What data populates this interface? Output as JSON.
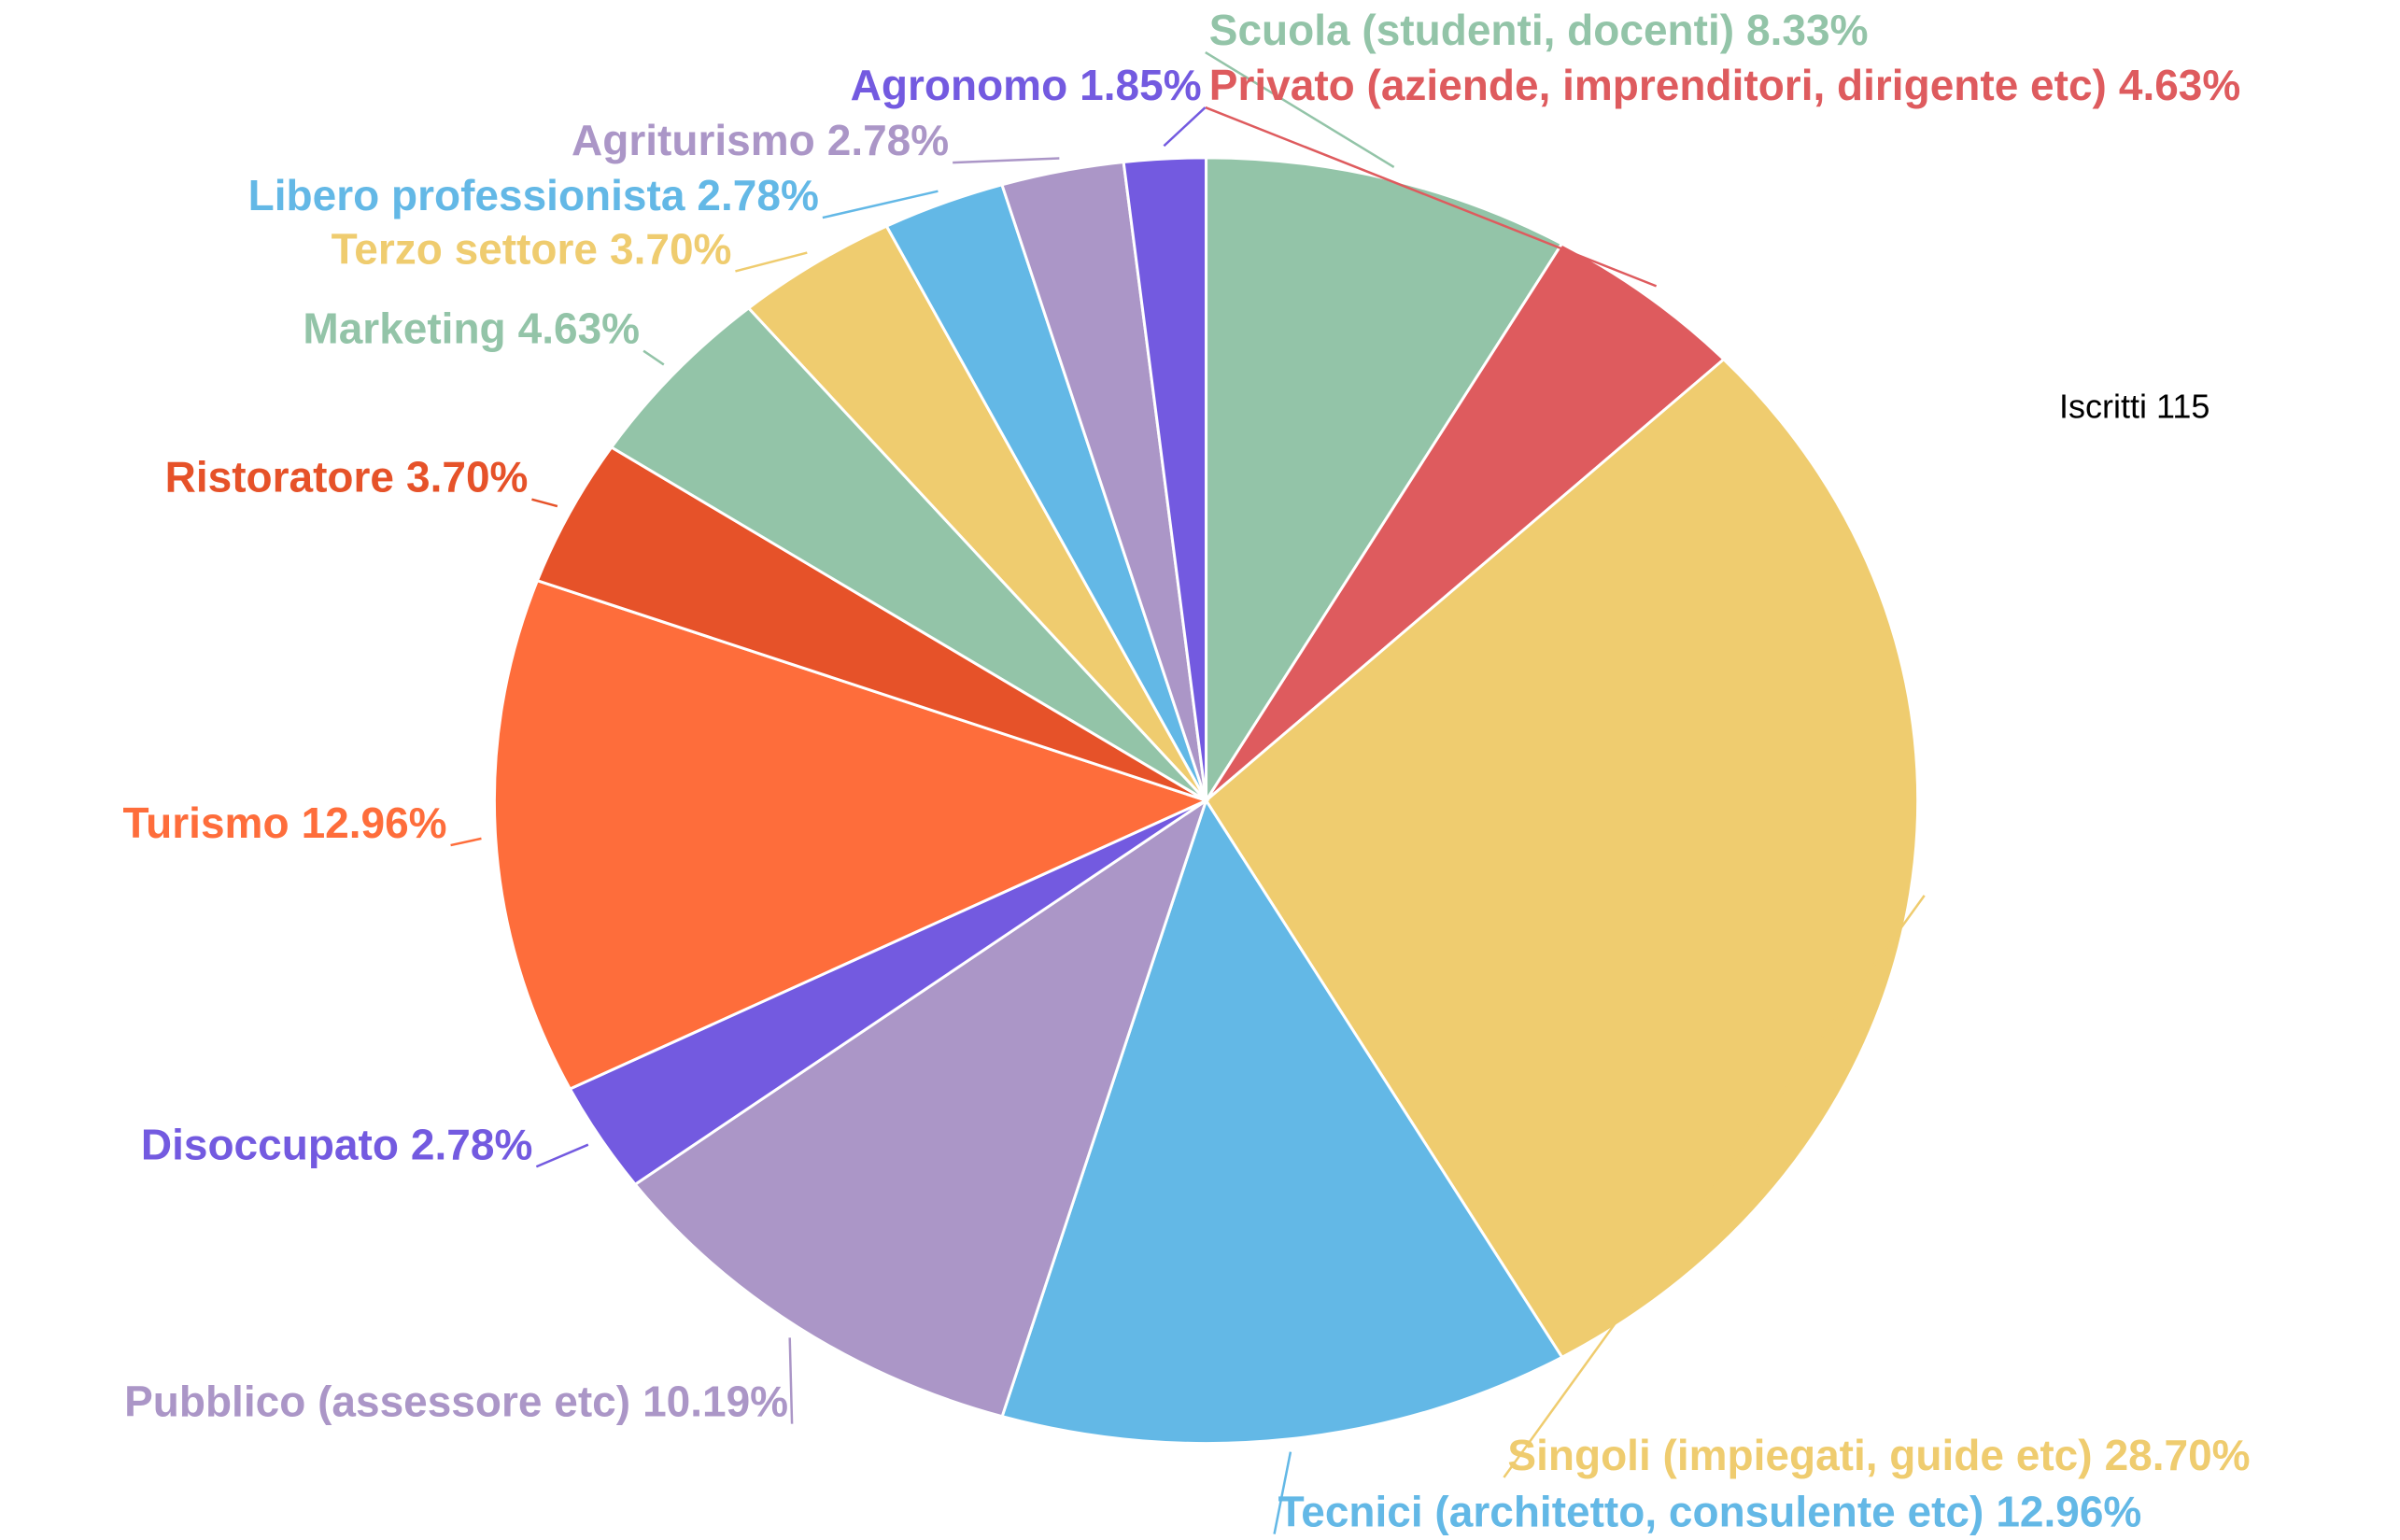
{
  "chart_data": {
    "type": "pie",
    "categories": [
      "Scuola (studenti, docenti)",
      "Privato (aziende, imprenditori, dirigente etc)",
      "Singoli (impiegati, guide etc)",
      "Tecnici (architetto, consulente etc)",
      "Pubblico (assessore etc)",
      "Disoccupato",
      "Turismo",
      "Ristoratore",
      "Marketing",
      "Terzo settore",
      "Libero professionista",
      "Agriturismo",
      "Agronomo"
    ],
    "values": [
      8.33,
      4.63,
      28.7,
      12.96,
      10.19,
      2.78,
      12.96,
      3.7,
      4.63,
      3.7,
      2.78,
      2.78,
      1.85
    ],
    "value_labels": [
      "8.33%",
      "4.63%",
      "28.70%",
      "12.96%",
      "10.19%",
      "2.78%",
      "12.96%",
      "3.70%",
      "4.63%",
      "3.70%",
      "2.78%",
      "2.78%",
      "1.85%"
    ],
    "colors": [
      "#93c4a8",
      "#de5b5e",
      "#efcc6f",
      "#63b8e6",
      "#ab96c7",
      "#735ae0",
      "#fe6d3b",
      "#e65229",
      "#93c4a8",
      "#efcc6f",
      "#63b8e6",
      "#ab96c7",
      "#735ae0"
    ],
    "annotation": "Iscritti 115"
  }
}
